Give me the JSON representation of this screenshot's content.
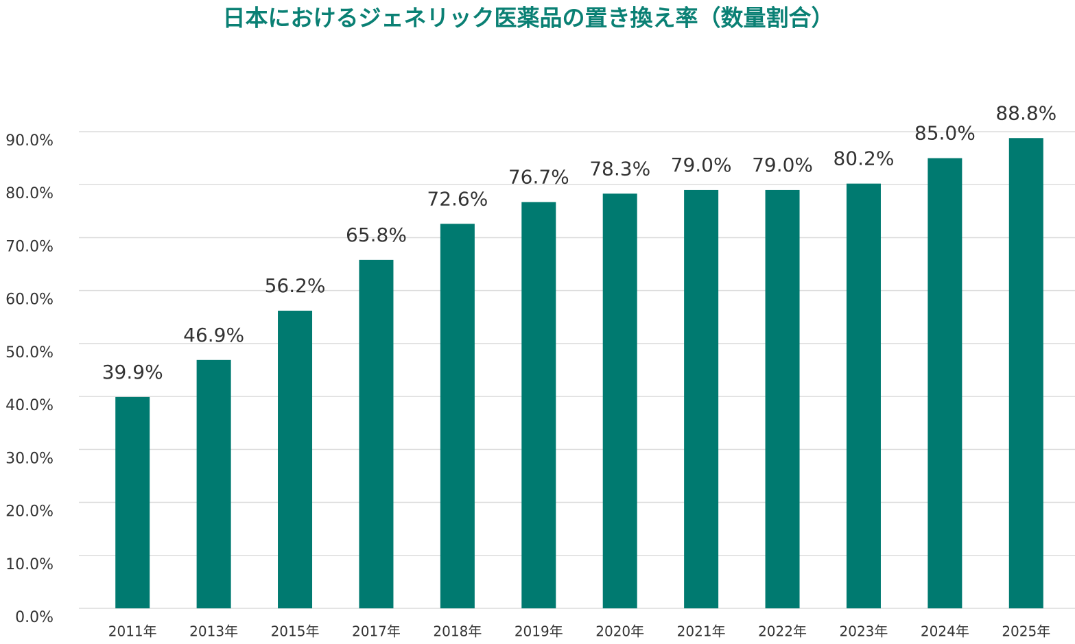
{
  "chart_data": {
    "type": "bar",
    "title": "日本におけるジェネリック医薬品の置き換え率（数量割合）",
    "categories": [
      "2011年",
      "2013年",
      "2015年",
      "2017年",
      "2018年",
      "2019年",
      "2020年",
      "2021年",
      "2022年",
      "2023年",
      "2024年",
      "2025年"
    ],
    "values": [
      39.9,
      46.9,
      56.2,
      65.8,
      72.6,
      76.7,
      78.3,
      79.0,
      79.0,
      80.2,
      85.0,
      88.8
    ],
    "value_labels": [
      "39.9%",
      "46.9%",
      "56.2%",
      "65.8%",
      "72.6%",
      "76.7%",
      "78.3%",
      "79.0%",
      "79.0%",
      "80.2%",
      "85.0%",
      "88.8%"
    ],
    "color": "#007a70",
    "ylim": [
      0,
      90
    ],
    "yticks": [
      {
        "value": 0,
        "label": "0.0%"
      },
      {
        "value": 10,
        "label": "10.0%"
      },
      {
        "value": 20,
        "label": "20.0%"
      },
      {
        "value": 30,
        "label": "30.0%"
      },
      {
        "value": 40,
        "label": "40.0%"
      },
      {
        "value": 50,
        "label": "50.0%"
      },
      {
        "value": 60,
        "label": "60.0%"
      },
      {
        "value": 70,
        "label": "70.0%"
      },
      {
        "value": 80,
        "label": "80.0%"
      },
      {
        "value": 90,
        "label": "90.0%"
      }
    ],
    "grid": true
  }
}
